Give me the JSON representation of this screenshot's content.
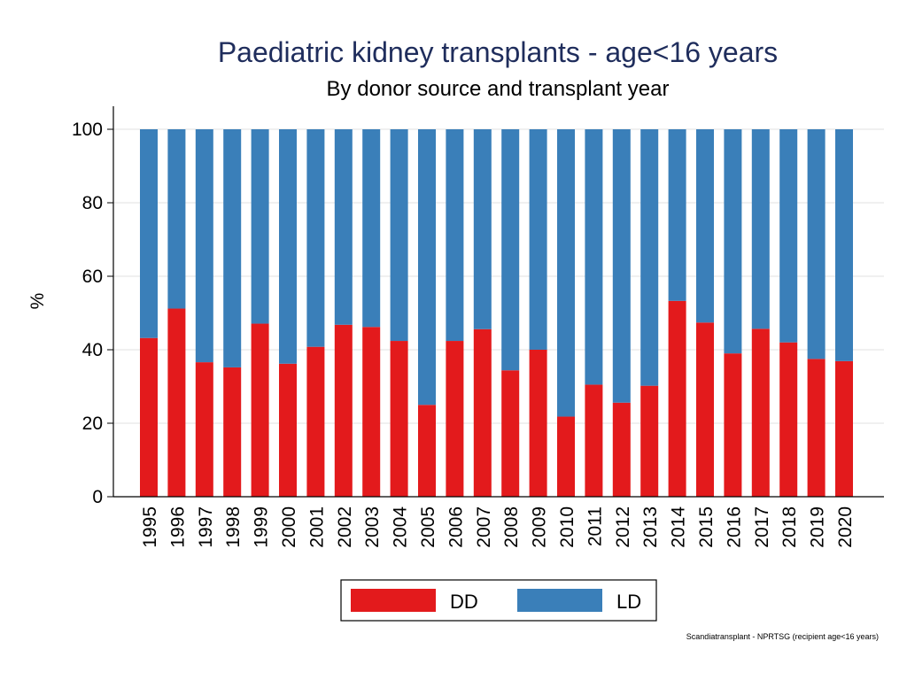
{
  "chart_data": {
    "type": "bar",
    "stacked": true,
    "title": "Paediatric kidney transplants - age<16 years",
    "subtitle": "By donor source and transplant year",
    "xlabel": "",
    "ylabel": "%",
    "ylim": [
      0,
      100
    ],
    "yticks": [
      0,
      20,
      40,
      60,
      80,
      100
    ],
    "grid": true,
    "categories": [
      "1995",
      "1996",
      "1997",
      "1998",
      "1999",
      "2000",
      "2001",
      "2002",
      "2003",
      "2004",
      "2005",
      "2006",
      "2007",
      "2008",
      "2009",
      "2010",
      "2011",
      "2012",
      "2013",
      "2014",
      "2015",
      "2016",
      "2017",
      "2018",
      "2019",
      "2020"
    ],
    "series": [
      {
        "name": "DD",
        "color": "#e31a1c",
        "values": [
          43.2,
          51.2,
          36.6,
          35.2,
          47.1,
          36.2,
          40.8,
          46.8,
          46.2,
          42.4,
          25.0,
          42.4,
          45.6,
          34.4,
          40.0,
          21.8,
          30.5,
          25.6,
          30.2,
          53.3,
          47.4,
          39.0,
          45.7,
          42.0,
          37.5,
          36.9
        ]
      },
      {
        "name": "LD",
        "color": "#3a7fb9",
        "values": [
          56.8,
          48.8,
          63.4,
          64.8,
          52.9,
          63.8,
          59.2,
          53.2,
          53.8,
          57.6,
          75.0,
          57.6,
          54.4,
          65.6,
          60.0,
          78.2,
          69.5,
          74.4,
          69.8,
          46.7,
          52.6,
          61.0,
          54.3,
          58.0,
          62.5,
          63.1
        ]
      }
    ],
    "legend": {
      "position": "bottom-center",
      "labels": [
        "DD",
        "LD"
      ]
    },
    "note": "Scandiatransplant - NPRTSG (recipient age<16 years)"
  }
}
